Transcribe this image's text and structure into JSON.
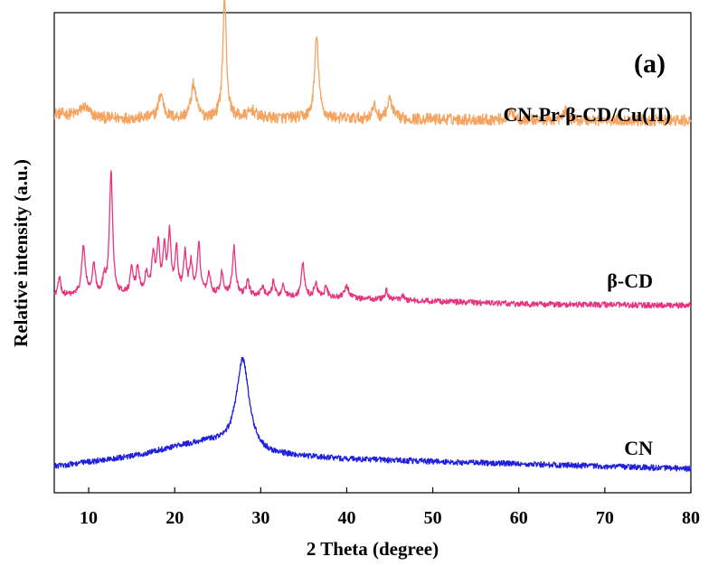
{
  "chart_data": {
    "type": "line",
    "panel_label": "(a)",
    "xlabel": "2 Theta (degree)",
    "ylabel": "Relative intensity (a.u.)",
    "xlim": [
      6,
      80
    ],
    "xticks": [
      10,
      20,
      30,
      40,
      50,
      60,
      70,
      80
    ],
    "yticks_shown": false,
    "series": [
      {
        "name": "CN-Pr-β-CD/Cu(II)",
        "color": "#F4A460",
        "baseline_intensity": 0.78,
        "noise": 0.012,
        "background": [
          [
            6,
            0.79
          ],
          [
            12,
            0.78
          ],
          [
            30,
            0.78
          ],
          [
            80,
            0.775
          ]
        ],
        "peaks": [
          {
            "x": 9.5,
            "h": 0.02,
            "w": 0.6
          },
          {
            "x": 18.4,
            "h": 0.05,
            "w": 0.35
          },
          {
            "x": 22.2,
            "h": 0.07,
            "w": 0.35
          },
          {
            "x": 25.8,
            "h": 0.25,
            "w": 0.25
          },
          {
            "x": 29.0,
            "h": 0.015,
            "w": 0.5
          },
          {
            "x": 36.5,
            "h": 0.17,
            "w": 0.28
          },
          {
            "x": 43.2,
            "h": 0.025,
            "w": 0.3
          },
          {
            "x": 45.0,
            "h": 0.04,
            "w": 0.35
          },
          {
            "x": 59.2,
            "h": 0.018,
            "w": 0.3
          },
          {
            "x": 65.4,
            "h": 0.02,
            "w": 0.25
          }
        ]
      },
      {
        "name": "β-CD",
        "color": "#E8337E",
        "baseline_intensity": 0.39,
        "noise": 0.006,
        "background": [
          [
            6,
            0.41
          ],
          [
            20,
            0.415
          ],
          [
            40,
            0.405
          ],
          [
            60,
            0.393
          ],
          [
            80,
            0.39
          ]
        ],
        "peaks": [
          {
            "x": 6.6,
            "h": 0.035,
            "w": 0.2
          },
          {
            "x": 9.4,
            "h": 0.1,
            "w": 0.25
          },
          {
            "x": 10.6,
            "h": 0.06,
            "w": 0.2
          },
          {
            "x": 11.8,
            "h": 0.03,
            "w": 0.2
          },
          {
            "x": 12.6,
            "h": 0.255,
            "w": 0.22
          },
          {
            "x": 15.0,
            "h": 0.05,
            "w": 0.2
          },
          {
            "x": 15.7,
            "h": 0.055,
            "w": 0.2
          },
          {
            "x": 16.7,
            "h": 0.04,
            "w": 0.2
          },
          {
            "x": 17.5,
            "h": 0.08,
            "w": 0.2
          },
          {
            "x": 18.1,
            "h": 0.1,
            "w": 0.2
          },
          {
            "x": 18.8,
            "h": 0.09,
            "w": 0.2
          },
          {
            "x": 19.4,
            "h": 0.12,
            "w": 0.2
          },
          {
            "x": 20.2,
            "h": 0.09,
            "w": 0.2
          },
          {
            "x": 21.2,
            "h": 0.08,
            "w": 0.2
          },
          {
            "x": 21.9,
            "h": 0.06,
            "w": 0.2
          },
          {
            "x": 22.8,
            "h": 0.1,
            "w": 0.2
          },
          {
            "x": 24.0,
            "h": 0.04,
            "w": 0.2
          },
          {
            "x": 25.5,
            "h": 0.045,
            "w": 0.2
          },
          {
            "x": 26.9,
            "h": 0.1,
            "w": 0.22
          },
          {
            "x": 28.5,
            "h": 0.03,
            "w": 0.2
          },
          {
            "x": 30.2,
            "h": 0.02,
            "w": 0.2
          },
          {
            "x": 31.5,
            "h": 0.03,
            "w": 0.2
          },
          {
            "x": 32.6,
            "h": 0.02,
            "w": 0.2
          },
          {
            "x": 34.9,
            "h": 0.07,
            "w": 0.22
          },
          {
            "x": 36.4,
            "h": 0.03,
            "w": 0.22
          },
          {
            "x": 37.6,
            "h": 0.02,
            "w": 0.22
          },
          {
            "x": 40.0,
            "h": 0.025,
            "w": 0.3
          },
          {
            "x": 44.6,
            "h": 0.02,
            "w": 0.2
          },
          {
            "x": 46.5,
            "h": 0.01,
            "w": 0.2
          }
        ]
      },
      {
        "name": "CN",
        "color": "#1F1FDD",
        "baseline_intensity": 0.05,
        "noise": 0.006,
        "background": [
          [
            6,
            0.055
          ],
          [
            15,
            0.075
          ],
          [
            20,
            0.095
          ],
          [
            24,
            0.105
          ],
          [
            30,
            0.08
          ],
          [
            40,
            0.07
          ],
          [
            60,
            0.06
          ],
          [
            80,
            0.05
          ]
        ],
        "peaks": [
          {
            "x": 27.9,
            "h": 0.19,
            "w": 0.9
          }
        ]
      }
    ],
    "series_labels": [
      "CN-Pr-β-CD/Cu(II)",
      "β-CD",
      "CN"
    ]
  }
}
